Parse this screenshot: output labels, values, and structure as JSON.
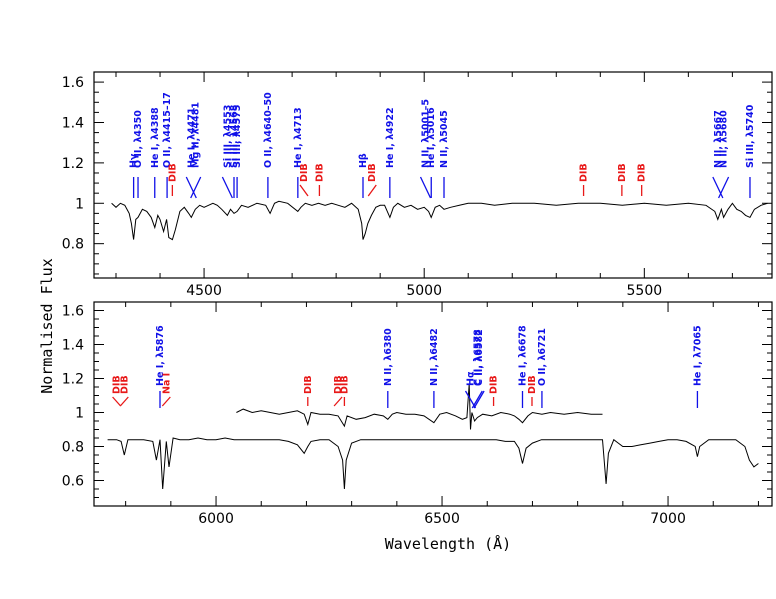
{
  "chart_data": [
    {
      "type": "line",
      "panel": "top",
      "xlim": [
        4250,
        5790
      ],
      "ylim": [
        0.63,
        1.65
      ],
      "xticks": [
        4500,
        5000,
        5500
      ],
      "yticks": [
        0.8,
        1,
        1.2,
        1.4,
        1.6
      ],
      "ylabel": "Normalised Flux",
      "series": [
        {
          "x": [
            4290,
            4300,
            4310,
            4320,
            4330,
            4335,
            4340,
            4345,
            4350,
            4360,
            4370,
            4380,
            4388,
            4395,
            4400,
            4408,
            4415,
            4420,
            4428,
            4435,
            4445,
            4455,
            4465,
            4471,
            4480,
            4490,
            4500,
            4510,
            4520,
            4530,
            4540,
            4553,
            4560,
            4568,
            4575,
            4585,
            4600,
            4620,
            4640,
            4650,
            4660,
            4670,
            4690,
            4713,
            4720,
            4730,
            4745,
            4760,
            4775,
            4790,
            4805,
            4820,
            4835,
            4850,
            4858,
            4861,
            4866,
            4872,
            4880,
            4890,
            4900,
            4910,
            4922,
            4930,
            4940,
            4955,
            4970,
            4985,
            5000,
            5010,
            5016,
            5025,
            5035,
            5045,
            5060,
            5080,
            5100,
            5130,
            5160,
            5200,
            5250,
            5300,
            5350,
            5400,
            5450,
            5500,
            5550,
            5600,
            5640,
            5660,
            5667,
            5675,
            5680,
            5690,
            5700,
            5710,
            5720,
            5730,
            5740,
            5750,
            5765,
            5780
          ],
          "y": [
            1.0,
            0.98,
            1.0,
            0.99,
            0.95,
            0.9,
            0.82,
            0.92,
            0.93,
            0.97,
            0.96,
            0.93,
            0.88,
            0.94,
            0.92,
            0.86,
            0.92,
            0.83,
            0.82,
            0.87,
            0.96,
            0.98,
            0.95,
            0.93,
            0.97,
            0.99,
            0.98,
            0.99,
            1.0,
            0.99,
            0.97,
            0.94,
            0.97,
            0.95,
            0.96,
            0.99,
            0.98,
            1.0,
            0.99,
            0.95,
            1.0,
            1.01,
            1.0,
            0.96,
            0.98,
            1.0,
            0.99,
            1.0,
            0.99,
            1.0,
            0.99,
            0.98,
            1.0,
            0.97,
            0.9,
            0.82,
            0.85,
            0.9,
            0.94,
            0.98,
            0.99,
            0.99,
            0.93,
            0.98,
            1.0,
            0.98,
            0.99,
            0.97,
            0.98,
            0.96,
            0.93,
            0.98,
            0.99,
            0.97,
            0.98,
            0.99,
            1.0,
            1.0,
            0.99,
            1.0,
            1.0,
            0.99,
            1.0,
            1.0,
            0.99,
            1.0,
            0.99,
            1.0,
            0.99,
            0.96,
            0.92,
            0.97,
            0.93,
            0.97,
            1.0,
            0.97,
            0.96,
            0.94,
            0.93,
            0.97,
            0.99,
            1.0
          ]
        }
      ],
      "annotations": [
        {
          "text": "Hγ",
          "x": 4340,
          "type": "line"
        },
        {
          "text": "O II, λ4350",
          "x": 4350,
          "type": "line"
        },
        {
          "text": "He I, λ4388",
          "x": 4388,
          "type": "line"
        },
        {
          "text": "O II, λ4415–17",
          "x": 4416,
          "type": "line"
        },
        {
          "text": "DIB",
          "x": 4428,
          "type": "dib"
        },
        {
          "text": "He I, λ4471",
          "x": 4471,
          "type": "line"
        },
        {
          "text": "Mg II, λ4481",
          "x": 4481,
          "type": "line"
        },
        {
          "text": "Si III, λ4553",
          "x": 4553,
          "type": "line"
        },
        {
          "text": "Si III, λ4568",
          "x": 4568,
          "type": "line"
        },
        {
          "text": "Si III, λ4575",
          "x": 4575,
          "type": "line"
        },
        {
          "text": "O II, λ4640–50",
          "x": 4645,
          "type": "line"
        },
        {
          "text": "He I, λ4713",
          "x": 4713,
          "type": "line"
        },
        {
          "text": "DIB",
          "x": 4727,
          "type": "dib"
        },
        {
          "text": "DIB",
          "x": 4762,
          "type": "dib"
        },
        {
          "text": "Hβ",
          "x": 4861,
          "type": "line"
        },
        {
          "text": "DIB",
          "x": 4882,
          "type": "dib"
        },
        {
          "text": "He I, λ4922",
          "x": 4922,
          "type": "line"
        },
        {
          "text": "N II, λ5001–5",
          "x": 5003,
          "type": "line"
        },
        {
          "text": "He I, λ5016",
          "x": 5016,
          "type": "line"
        },
        {
          "text": "N II, λ5045",
          "x": 5045,
          "type": "line"
        },
        {
          "text": "DIB",
          "x": 5362,
          "type": "dib"
        },
        {
          "text": "DIB",
          "x": 5449,
          "type": "dib"
        },
        {
          "text": "DIB",
          "x": 5494,
          "type": "dib"
        },
        {
          "text": "N II, λ5667",
          "x": 5667,
          "type": "line"
        },
        {
          "text": "N II, λ5680",
          "x": 5680,
          "type": "line"
        },
        {
          "text": "Si III, λ5740",
          "x": 5740,
          "type": "line"
        }
      ]
    },
    {
      "type": "line",
      "panel": "bottom",
      "xlim": [
        5730,
        7230
      ],
      "ylim": [
        0.45,
        1.65
      ],
      "xticks": [
        6000,
        6500,
        7000
      ],
      "yticks": [
        0.6,
        0.8,
        1,
        1.2,
        1.4,
        1.6
      ],
      "xlabel": "Wavelength (Å)",
      "series": [
        {
          "x": [
            6045,
            6060,
            6080,
            6100,
            6120,
            6140,
            6160,
            6180,
            6195,
            6203,
            6210,
            6230,
            6250,
            6270,
            6284,
            6290,
            6310,
            6330,
            6350,
            6370,
            6380,
            6390,
            6400,
            6420,
            6440,
            6460,
            6482,
            6495,
            6510,
            6530,
            6545,
            6555,
            6560,
            6563,
            6566,
            6572,
            6578,
            6590,
            6610,
            6630,
            6650,
            6660,
            6670,
            6678,
            6690,
            6700,
            6721,
            6740,
            6770,
            6800,
            6830,
            6855
          ],
          "y": [
            1.0,
            1.02,
            1.0,
            1.01,
            1.0,
            0.99,
            1.0,
            1.01,
            0.99,
            0.93,
            1.0,
            0.99,
            0.99,
            0.98,
            0.92,
            0.98,
            0.96,
            0.97,
            0.99,
            0.98,
            0.96,
            0.99,
            1.0,
            0.99,
            0.99,
            0.98,
            0.94,
            0.99,
            1.0,
            0.98,
            0.96,
            0.97,
            1.17,
            0.9,
            1.0,
            0.95,
            0.97,
            0.99,
            0.98,
            1.0,
            0.99,
            0.98,
            0.96,
            0.94,
            0.98,
            1.0,
            0.99,
            1.0,
            0.99,
            1.0,
            0.99,
            0.99
          ]
        },
        {
          "x": [
            5760,
            5780,
            5790,
            5797,
            5805,
            5820,
            5840,
            5860,
            5868,
            5876,
            5882,
            5890,
            5896,
            5905,
            5920,
            5940,
            5960,
            5980,
            6000,
            6020,
            6040,
            6060,
            6080,
            6100,
            6120,
            6140,
            6160,
            6180,
            6195,
            6203,
            6210,
            6230,
            6250,
            6270,
            6280,
            6284,
            6288,
            6300,
            6320,
            6340,
            6360,
            6380,
            6400,
            6420,
            6440,
            6460,
            6480,
            6500,
            6520,
            6540,
            6560,
            6563,
            6566,
            6580,
            6600,
            6620,
            6640,
            6660,
            6670,
            6678,
            6686,
            6700,
            6720,
            6740,
            6760,
            6780,
            6800,
            6820,
            6840,
            6855,
            6863,
            6868,
            6880,
            6890,
            6900,
            6920,
            6940,
            6960,
            6980,
            7000,
            7020,
            7040,
            7060,
            7065,
            7070,
            7090,
            7110,
            7130,
            7150,
            7170,
            7180,
            7190,
            7200
          ],
          "y": [
            0.84,
            0.84,
            0.83,
            0.75,
            0.84,
            0.84,
            0.84,
            0.83,
            0.72,
            0.84,
            0.55,
            0.83,
            0.68,
            0.85,
            0.84,
            0.84,
            0.85,
            0.84,
            0.84,
            0.85,
            0.84,
            0.84,
            0.84,
            0.84,
            0.84,
            0.84,
            0.83,
            0.81,
            0.76,
            0.8,
            0.83,
            0.84,
            0.84,
            0.8,
            0.72,
            0.55,
            0.72,
            0.82,
            0.84,
            0.84,
            0.84,
            0.84,
            0.84,
            0.84,
            0.84,
            0.84,
            0.84,
            0.84,
            0.84,
            0.84,
            0.84,
            0.84,
            0.84,
            0.84,
            0.84,
            0.84,
            0.83,
            0.83,
            0.79,
            0.7,
            0.79,
            0.82,
            0.84,
            0.84,
            0.84,
            0.84,
            0.84,
            0.84,
            0.84,
            0.84,
            0.58,
            0.76,
            0.84,
            0.82,
            0.8,
            0.8,
            0.81,
            0.82,
            0.83,
            0.84,
            0.84,
            0.83,
            0.8,
            0.74,
            0.8,
            0.84,
            0.84,
            0.84,
            0.84,
            0.8,
            0.72,
            0.68,
            0.7
          ]
        }
      ],
      "annotations": [
        {
          "text": "DIB",
          "x": 5780,
          "type": "dib"
        },
        {
          "text": "DIB",
          "x": 5797,
          "type": "dib"
        },
        {
          "text": "He I, λ5876",
          "x": 5876,
          "type": "line"
        },
        {
          "text": "Na I",
          "x": 5890,
          "type": "dib"
        },
        {
          "text": "DIB",
          "x": 6203,
          "type": "dib"
        },
        {
          "text": "DIB",
          "x": 6270,
          "type": "dib"
        },
        {
          "text": "DIB",
          "x": 6284,
          "type": "dib"
        },
        {
          "text": "N II, λ6380",
          "x": 6380,
          "type": "line"
        },
        {
          "text": "N II, λ6482",
          "x": 6482,
          "type": "line"
        },
        {
          "text": "Hα",
          "x": 6563,
          "type": "line"
        },
        {
          "text": "C II, λ6578",
          "x": 6578,
          "type": "line"
        },
        {
          "text": "C II, λ6582",
          "x": 6582,
          "type": "line"
        },
        {
          "text": "DIB",
          "x": 6614,
          "type": "dib"
        },
        {
          "text": "He I, λ6678",
          "x": 6678,
          "type": "line"
        },
        {
          "text": "DIB",
          "x": 6699,
          "type": "dib"
        },
        {
          "text": "O II, λ6721",
          "x": 6721,
          "type": "line"
        },
        {
          "text": "He I, λ7065",
          "x": 7065,
          "type": "line"
        }
      ]
    }
  ],
  "colors": {
    "line_id": "#1010e8",
    "dib": "#e81818"
  }
}
